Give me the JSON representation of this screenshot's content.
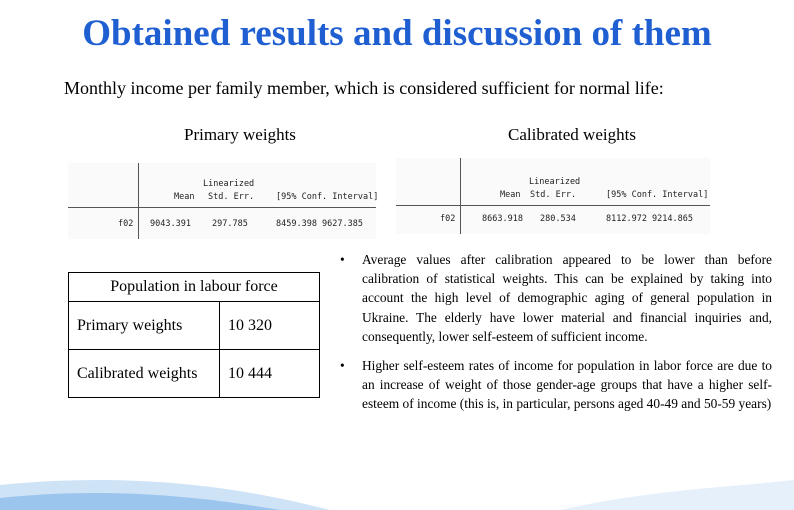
{
  "title": "Obtained results and discussion of them",
  "subtitle": "Monthly income per family member, which is considered sufficient for normal life:",
  "primary_label": "Primary weights",
  "calibrated_label": "Calibrated weights",
  "stata_primary": {
    "header_top": "Linearized",
    "header_cols": [
      "Mean",
      "Std. Err.",
      "[95% Conf. Interval]"
    ],
    "row_name": "f02",
    "values": [
      "9043.391",
      "297.785",
      "8459.398",
      "9627.385"
    ]
  },
  "stata_calibrated": {
    "header_top": "Linearized",
    "header_cols": [
      "Mean",
      "Std. Err.",
      "[95% Conf. Interval]"
    ],
    "row_name": "f02",
    "values": [
      "8663.918",
      "280.534",
      "8112.972",
      "9214.865"
    ]
  },
  "labour_table": {
    "header": "Population in labour force",
    "rows": [
      {
        "label": "Primary weights",
        "value": "10 320"
      },
      {
        "label": "Calibrated weights",
        "value": "10 444"
      }
    ]
  },
  "bullets": [
    "Average values after calibration appeared to be lower than before calibration of statistical weights. This can be explained by taking into account the high level of demographic aging of general population in Ukraine. The elderly have lower material and financial inquiries and, consequently, lower self-esteem of sufficient income.",
    "Higher self-esteem rates of income for population in labor force are due to an increase of weight of those gender-age groups that have a higher self-esteem of income (this is, in particular, persons aged 40-49 and 50-59 years)"
  ],
  "bullet_symbol": "•"
}
